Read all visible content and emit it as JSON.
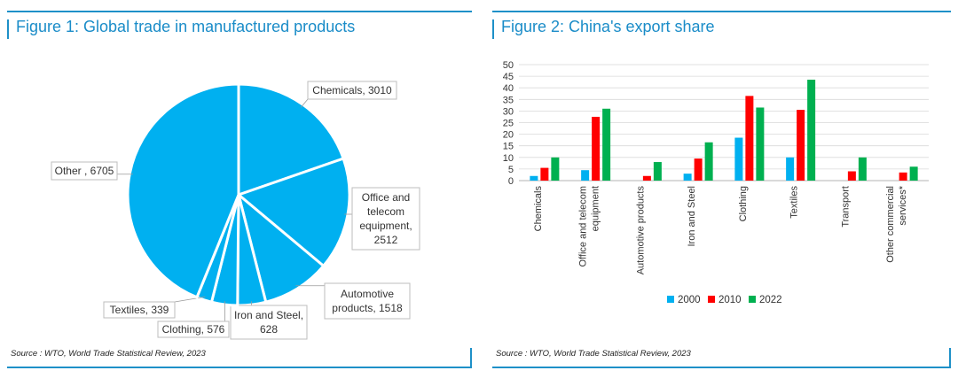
{
  "figure1": {
    "title": "Figure 1: Global trade in manufactured products",
    "source": "Source : WTO, World Trade Statistical Review, 2023"
  },
  "figure2": {
    "title": "Figure 2: China's export share",
    "source": "Source : WTO, World Trade Statistical Review, 2023"
  },
  "colors": {
    "accent": "#1e90c8",
    "pie_fill": "#00b0f0",
    "series_2000": "#00b0f0",
    "series_2010": "#ff0000",
    "series_2022": "#00b050"
  },
  "chart_data": [
    {
      "type": "pie",
      "title": "Figure 1: Global trade in manufactured products",
      "slices": [
        {
          "label": "Chemicals",
          "value": 3010,
          "text": "Chemicals, 3010"
        },
        {
          "label": "Office and telecom equipment",
          "value": 2512,
          "text": [
            "Office and",
            "telecom",
            "equipment,",
            "2512"
          ]
        },
        {
          "label": "Automotive products",
          "value": 1518,
          "text": [
            "Automotive",
            "products, 1518"
          ]
        },
        {
          "label": "Iron and Steel",
          "value": 628,
          "text": [
            "Iron and Steel,",
            "628"
          ]
        },
        {
          "label": "Clothing",
          "value": 576,
          "text": "Clothing, 576"
        },
        {
          "label": "Textiles",
          "value": 339,
          "text": "Textiles, 339"
        },
        {
          "label": "Other",
          "value": 6705,
          "text": "Other , 6705"
        }
      ]
    },
    {
      "type": "bar",
      "title": "Figure 2: China's export share",
      "categories": [
        [
          "Chemicals"
        ],
        [
          "Office and telecom",
          "equipment"
        ],
        [
          "Automotive products"
        ],
        [
          "Iron and Steel"
        ],
        [
          "Clothing"
        ],
        [
          "Textiles"
        ],
        [
          "Transport"
        ],
        [
          "Other commercial",
          "services*"
        ]
      ],
      "series": [
        {
          "name": "2000",
          "values": [
            2,
            4.5,
            0,
            3,
            18.5,
            10,
            0,
            0
          ]
        },
        {
          "name": "2010",
          "values": [
            5.5,
            27.5,
            2,
            9.5,
            36.5,
            30.5,
            4,
            3.5
          ]
        },
        {
          "name": "2022",
          "values": [
            10,
            31,
            8,
            16.5,
            31.5,
            43.5,
            10,
            6
          ]
        }
      ],
      "ylim": [
        0,
        50
      ],
      "yticks": [
        0,
        5,
        10,
        15,
        20,
        25,
        30,
        35,
        40,
        45,
        50
      ],
      "grid": true,
      "legend": "bottom"
    }
  ]
}
